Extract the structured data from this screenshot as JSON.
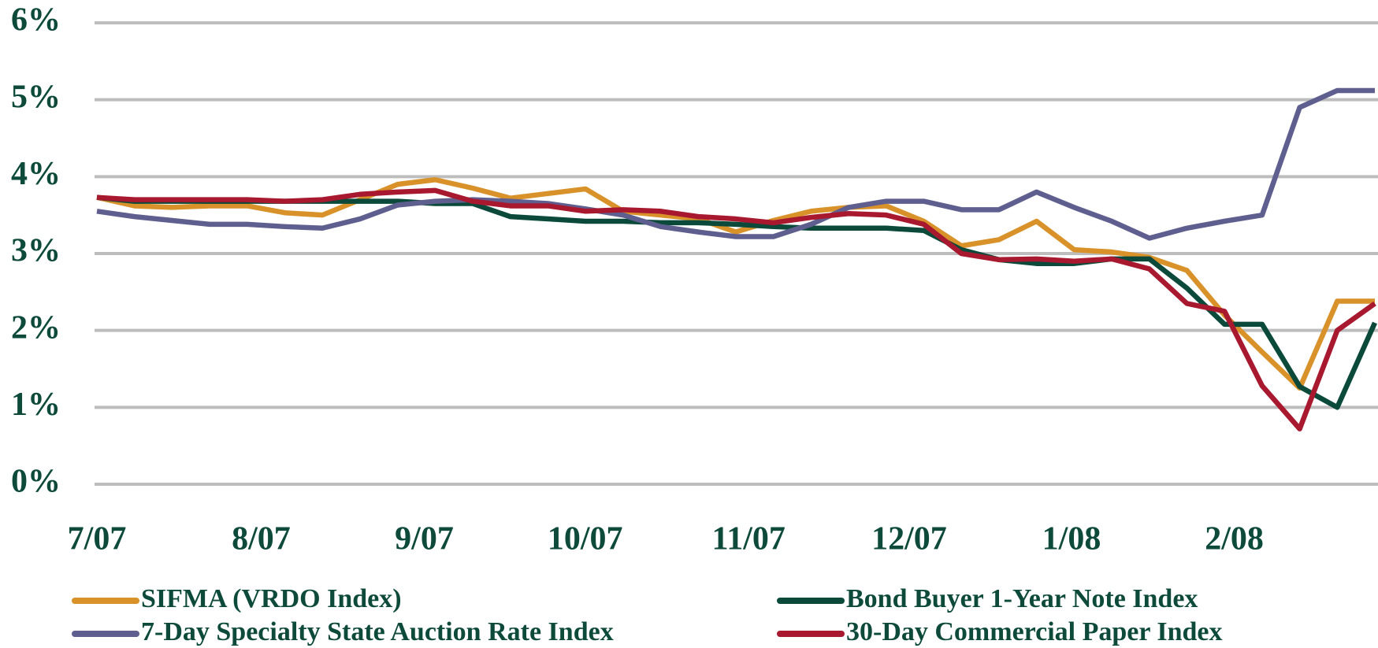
{
  "chart_data": {
    "type": "line",
    "x": [
      0,
      1,
      2,
      3,
      4,
      5,
      6,
      7,
      8,
      9,
      10,
      11,
      12,
      13,
      14,
      15,
      16,
      17,
      18,
      19,
      20,
      21,
      22,
      23,
      24,
      25,
      26,
      27,
      28,
      29,
      30,
      31,
      32,
      33,
      34
    ],
    "xlim": [
      0,
      34
    ],
    "xticks": [
      {
        "value": 0,
        "label": "7/07"
      },
      {
        "value": 4.37,
        "label": "8/07"
      },
      {
        "value": 8.71,
        "label": "9/07"
      },
      {
        "value": 12.99,
        "label": "10/07"
      },
      {
        "value": 17.34,
        "label": "11/07"
      },
      {
        "value": 21.61,
        "label": "12/07"
      },
      {
        "value": 25.93,
        "label": "1/08"
      },
      {
        "value": 30.26,
        "label": "2/08"
      }
    ],
    "ylim": [
      0,
      6
    ],
    "yticks": [
      {
        "value": 0,
        "label": "0%"
      },
      {
        "value": 1,
        "label": "1%"
      },
      {
        "value": 2,
        "label": "2%"
      },
      {
        "value": 3,
        "label": "3%"
      },
      {
        "value": 4,
        "label": "4%"
      },
      {
        "value": 5,
        "label": "5%"
      },
      {
        "value": 6,
        "label": "6%"
      }
    ],
    "grid": true,
    "legend": "bottom",
    "series": [
      {
        "name": "SIFMA (VRDO Index)",
        "color": "#d9922a",
        "values": [
          3.73,
          3.62,
          3.6,
          3.62,
          3.62,
          3.53,
          3.5,
          3.7,
          3.9,
          3.96,
          3.85,
          3.72,
          3.78,
          3.84,
          3.55,
          3.5,
          3.45,
          3.28,
          3.43,
          3.55,
          3.6,
          3.62,
          3.42,
          3.1,
          3.18,
          3.42,
          3.05,
          3.02,
          2.95,
          2.78,
          2.2,
          1.72,
          1.25,
          2.38,
          2.38
        ]
      },
      {
        "name": "Bond Buyer 1-Year Note Index",
        "color": "#0b4a3a",
        "values": [
          3.73,
          3.68,
          3.68,
          3.68,
          3.68,
          3.68,
          3.68,
          3.68,
          3.68,
          3.65,
          3.65,
          3.48,
          3.45,
          3.42,
          3.42,
          3.4,
          3.4,
          3.38,
          3.35,
          3.33,
          3.33,
          3.33,
          3.3,
          3.05,
          2.92,
          2.87,
          2.87,
          2.93,
          2.93,
          2.55,
          2.08,
          2.08,
          1.27,
          1.0,
          2.1
        ]
      },
      {
        "name": "7-Day Specialty State Auction Rate Index",
        "color": "#5f5f8f",
        "values": [
          3.55,
          3.48,
          3.43,
          3.38,
          3.38,
          3.35,
          3.33,
          3.45,
          3.63,
          3.68,
          3.7,
          3.68,
          3.65,
          3.58,
          3.5,
          3.35,
          3.28,
          3.22,
          3.22,
          3.38,
          3.6,
          3.68,
          3.68,
          3.57,
          3.57,
          3.8,
          3.6,
          3.42,
          3.2,
          3.33,
          3.42,
          3.5,
          4.9,
          5.12,
          5.12
        ]
      },
      {
        "name": "30-Day Commercial Paper Index",
        "color": "#a8182f",
        "values": [
          3.73,
          3.7,
          3.7,
          3.7,
          3.7,
          3.68,
          3.7,
          3.77,
          3.8,
          3.82,
          3.68,
          3.62,
          3.62,
          3.55,
          3.57,
          3.55,
          3.48,
          3.45,
          3.4,
          3.47,
          3.52,
          3.5,
          3.38,
          3.0,
          2.92,
          2.93,
          2.9,
          2.93,
          2.8,
          2.35,
          2.25,
          1.28,
          0.72,
          2.0,
          2.35
        ]
      }
    ]
  }
}
